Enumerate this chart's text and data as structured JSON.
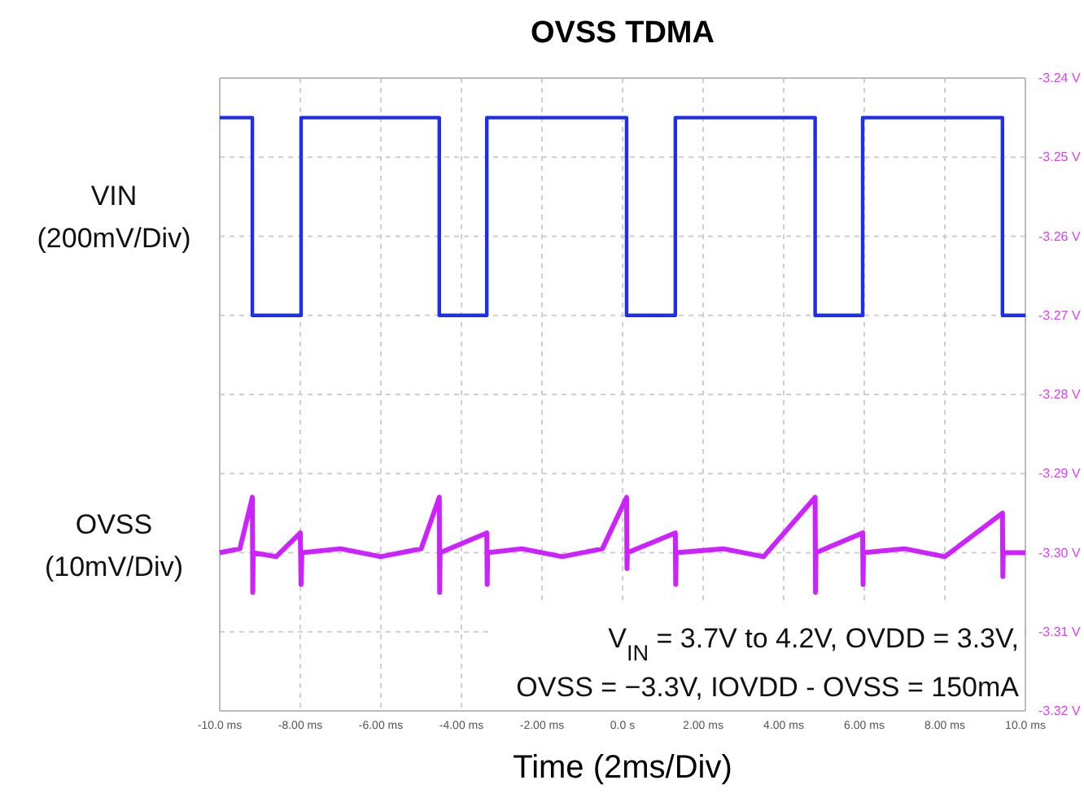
{
  "chart_data": {
    "type": "line",
    "title": "OVSS TDMA",
    "xlabel": "Time (2ms/Div)",
    "xlim": [
      -10,
      10
    ],
    "xticks": [
      {
        "value": -10,
        "label": "-10.0 ms"
      },
      {
        "value": -8,
        "label": "-8.00 ms"
      },
      {
        "value": -6,
        "label": "-6.00 ms"
      },
      {
        "value": -4,
        "label": "-4.00 ms"
      },
      {
        "value": -2,
        "label": "-2.00 ms"
      },
      {
        "value": 0,
        "label": "0.0 s"
      },
      {
        "value": 2,
        "label": "2.00 ms"
      },
      {
        "value": 4,
        "label": "4.00 ms"
      },
      {
        "value": 6,
        "label": "6.00 ms"
      },
      {
        "value": 8,
        "label": "8.00 ms"
      },
      {
        "value": 10,
        "label": "10.0 ms"
      }
    ],
    "ylim": [
      -3.32,
      -3.24
    ],
    "yticks": [
      {
        "value": -3.24,
        "label": "-3.24 V"
      },
      {
        "value": -3.25,
        "label": "-3.25 V"
      },
      {
        "value": -3.26,
        "label": "-3.26 V"
      },
      {
        "value": -3.27,
        "label": "-3.27 V"
      },
      {
        "value": -3.28,
        "label": "-3.28 V"
      },
      {
        "value": -3.29,
        "label": "-3.29 V"
      },
      {
        "value": -3.3,
        "label": "-3.30 V"
      },
      {
        "value": -3.31,
        "label": "-3.31 V"
      },
      {
        "value": -3.32,
        "label": "-3.32 V"
      }
    ],
    "grid": true,
    "legend": false,
    "series": [
      {
        "name": "VIN (200mV/Div)",
        "color": "#1f2ee8",
        "x": [
          -10,
          -9.19,
          -9.19,
          -7.98,
          -7.98,
          -4.55,
          -4.55,
          -3.37,
          -3.37,
          0.1,
          0.1,
          1.31,
          1.31,
          4.78,
          4.78,
          5.96,
          5.96,
          9.43,
          9.43,
          10
        ],
        "values": [
          -3.245,
          -3.245,
          -3.27,
          -3.27,
          -3.245,
          -3.245,
          -3.27,
          -3.27,
          -3.245,
          -3.245,
          -3.27,
          -3.27,
          -3.245,
          -3.245,
          -3.27,
          -3.27,
          -3.245,
          -3.245,
          -3.27,
          -3.27
        ]
      },
      {
        "name": "OVSS (10mV/Div)",
        "color": "#cc22ff",
        "x": [
          -10,
          -9.5,
          -9.19,
          -9.18,
          -9.17,
          -8.6,
          -8.0,
          -7.98,
          -7.96,
          -7.0,
          -6.0,
          -5.0,
          -4.55,
          -4.54,
          -4.53,
          -3.37,
          -3.36,
          -3.35,
          -2.5,
          -1.5,
          -0.5,
          0.1,
          0.11,
          0.12,
          1.31,
          1.32,
          1.33,
          2.5,
          3.5,
          4.78,
          4.79,
          4.8,
          5.96,
          5.97,
          5.98,
          7.0,
          8.0,
          9.43,
          9.44,
          9.45,
          10
        ],
        "values": [
          -3.3,
          -3.2995,
          -3.293,
          -3.305,
          -3.3,
          -3.3005,
          -3.2975,
          -3.304,
          -3.3,
          -3.2995,
          -3.3005,
          -3.2995,
          -3.293,
          -3.305,
          -3.3,
          -3.2975,
          -3.304,
          -3.3,
          -3.2995,
          -3.3005,
          -3.2995,
          -3.293,
          -3.302,
          -3.3,
          -3.2975,
          -3.304,
          -3.3,
          -3.2995,
          -3.3005,
          -3.293,
          -3.305,
          -3.3,
          -3.2975,
          -3.304,
          -3.3,
          -3.2995,
          -3.3005,
          -3.295,
          -3.303,
          -3.3,
          -3.3
        ]
      }
    ],
    "annotations": [
      "V$_{IN}$ = 3.7V to 4.2V, OVDD = 3.3V,",
      "OVSS = −3.3V, IOVDD - OVSS = 150mA"
    ]
  }
}
